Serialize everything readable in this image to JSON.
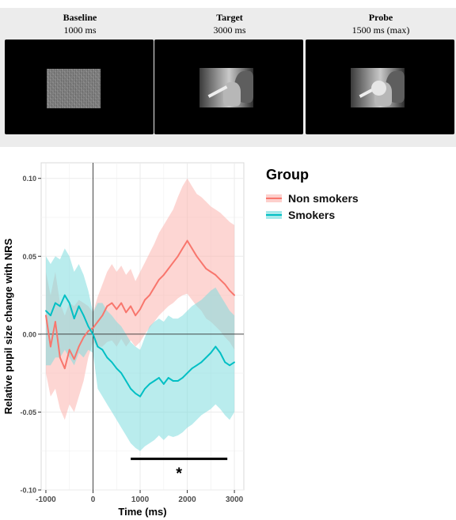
{
  "stimuli": [
    {
      "title": "Baseline",
      "duration": "1000 ms",
      "display": "noise"
    },
    {
      "title": "Target",
      "duration": "3000 ms",
      "display": "smoking-image"
    },
    {
      "title": "Probe",
      "duration": "1500 ms (max)",
      "display": "smoking-image-with-probe-dot"
    }
  ],
  "chart_data": {
    "type": "line",
    "xlabel": "Time (ms)",
    "ylabel": "Relative pupil size change with NRS",
    "xlim": [
      -1100,
      3200
    ],
    "ylim": [
      -0.1,
      0.11
    ],
    "xticks": [
      "-1000",
      "0",
      "1000",
      "2000",
      "3000"
    ],
    "yticks": [
      "-0.10",
      "-0.05",
      "0.00",
      "0.05",
      "0.10"
    ],
    "grid": true,
    "reference_lines": {
      "x": 0,
      "y": 0
    },
    "legend": {
      "title": "Group",
      "placement": "right"
    },
    "x": [
      -1000,
      -900,
      -800,
      -700,
      -600,
      -500,
      -400,
      -300,
      -200,
      -100,
      0,
      100,
      200,
      300,
      400,
      500,
      600,
      700,
      800,
      900,
      1000,
      1100,
      1200,
      1300,
      1400,
      1500,
      1600,
      1700,
      1800,
      1900,
      2000,
      2100,
      2200,
      2300,
      2400,
      2500,
      2600,
      2700,
      2800,
      2900,
      3000
    ],
    "series": [
      {
        "name": "Non smokers",
        "color": "#F8766D",
        "band_color": "#FBB4AE",
        "values": [
          0.012,
          -0.008,
          0.008,
          -0.015,
          -0.022,
          -0.01,
          -0.016,
          -0.008,
          -0.002,
          0.002,
          0.004,
          0.008,
          0.012,
          0.018,
          0.02,
          0.016,
          0.02,
          0.014,
          0.018,
          0.012,
          0.016,
          0.022,
          0.025,
          0.03,
          0.035,
          0.038,
          0.042,
          0.046,
          0.05,
          0.055,
          0.06,
          0.055,
          0.05,
          0.046,
          0.042,
          0.04,
          0.038,
          0.035,
          0.032,
          0.028,
          0.025
        ],
        "lower": [
          -0.025,
          -0.04,
          -0.035,
          -0.048,
          -0.055,
          -0.045,
          -0.05,
          -0.04,
          -0.03,
          -0.015,
          -0.005,
          -0.008,
          -0.008,
          -0.005,
          -0.004,
          -0.008,
          -0.003,
          -0.008,
          -0.004,
          -0.008,
          -0.005,
          0.0,
          0.004,
          0.008,
          0.012,
          0.015,
          0.018,
          0.02,
          0.023,
          0.025,
          0.026,
          0.022,
          0.018,
          0.015,
          0.01,
          0.008,
          0.005,
          0.002,
          -0.002,
          -0.005,
          -0.01
        ],
        "upper": [
          0.04,
          0.025,
          0.04,
          0.02,
          0.012,
          0.02,
          0.018,
          0.022,
          0.02,
          0.018,
          0.014,
          0.024,
          0.032,
          0.04,
          0.045,
          0.04,
          0.044,
          0.038,
          0.042,
          0.034,
          0.04,
          0.046,
          0.052,
          0.058,
          0.065,
          0.07,
          0.075,
          0.08,
          0.088,
          0.095,
          0.1,
          0.095,
          0.09,
          0.088,
          0.085,
          0.082,
          0.08,
          0.078,
          0.075,
          0.072,
          0.07
        ]
      },
      {
        "name": "Smokers",
        "color": "#00BFC4",
        "band_color": "#7FDCDE",
        "values": [
          0.015,
          0.012,
          0.02,
          0.018,
          0.025,
          0.02,
          0.01,
          0.018,
          0.012,
          0.005,
          0.0,
          -0.008,
          -0.01,
          -0.015,
          -0.018,
          -0.022,
          -0.025,
          -0.03,
          -0.035,
          -0.038,
          -0.04,
          -0.035,
          -0.032,
          -0.03,
          -0.028,
          -0.032,
          -0.028,
          -0.03,
          -0.03,
          -0.028,
          -0.025,
          -0.022,
          -0.02,
          -0.018,
          -0.015,
          -0.012,
          -0.008,
          -0.012,
          -0.018,
          -0.02,
          -0.018
        ],
        "lower": [
          -0.02,
          -0.02,
          -0.015,
          -0.015,
          -0.01,
          -0.015,
          -0.02,
          -0.012,
          -0.015,
          -0.01,
          -0.012,
          -0.035,
          -0.04,
          -0.045,
          -0.05,
          -0.055,
          -0.06,
          -0.065,
          -0.07,
          -0.073,
          -0.075,
          -0.072,
          -0.07,
          -0.068,
          -0.065,
          -0.068,
          -0.065,
          -0.066,
          -0.065,
          -0.063,
          -0.06,
          -0.058,
          -0.055,
          -0.052,
          -0.05,
          -0.048,
          -0.045,
          -0.048,
          -0.052,
          -0.055,
          -0.05
        ],
        "upper": [
          0.05,
          0.045,
          0.05,
          0.048,
          0.055,
          0.05,
          0.04,
          0.045,
          0.038,
          0.028,
          0.014,
          0.02,
          0.02,
          0.015,
          0.012,
          0.008,
          0.005,
          0.0,
          -0.005,
          -0.008,
          -0.01,
          -0.002,
          0.005,
          0.008,
          0.01,
          0.008,
          0.012,
          0.01,
          0.01,
          0.012,
          0.015,
          0.018,
          0.02,
          0.022,
          0.025,
          0.028,
          0.03,
          0.025,
          0.02,
          0.015,
          0.012
        ]
      }
    ],
    "significance": {
      "x_start": 800,
      "x_end": 2850,
      "label": "*"
    }
  }
}
